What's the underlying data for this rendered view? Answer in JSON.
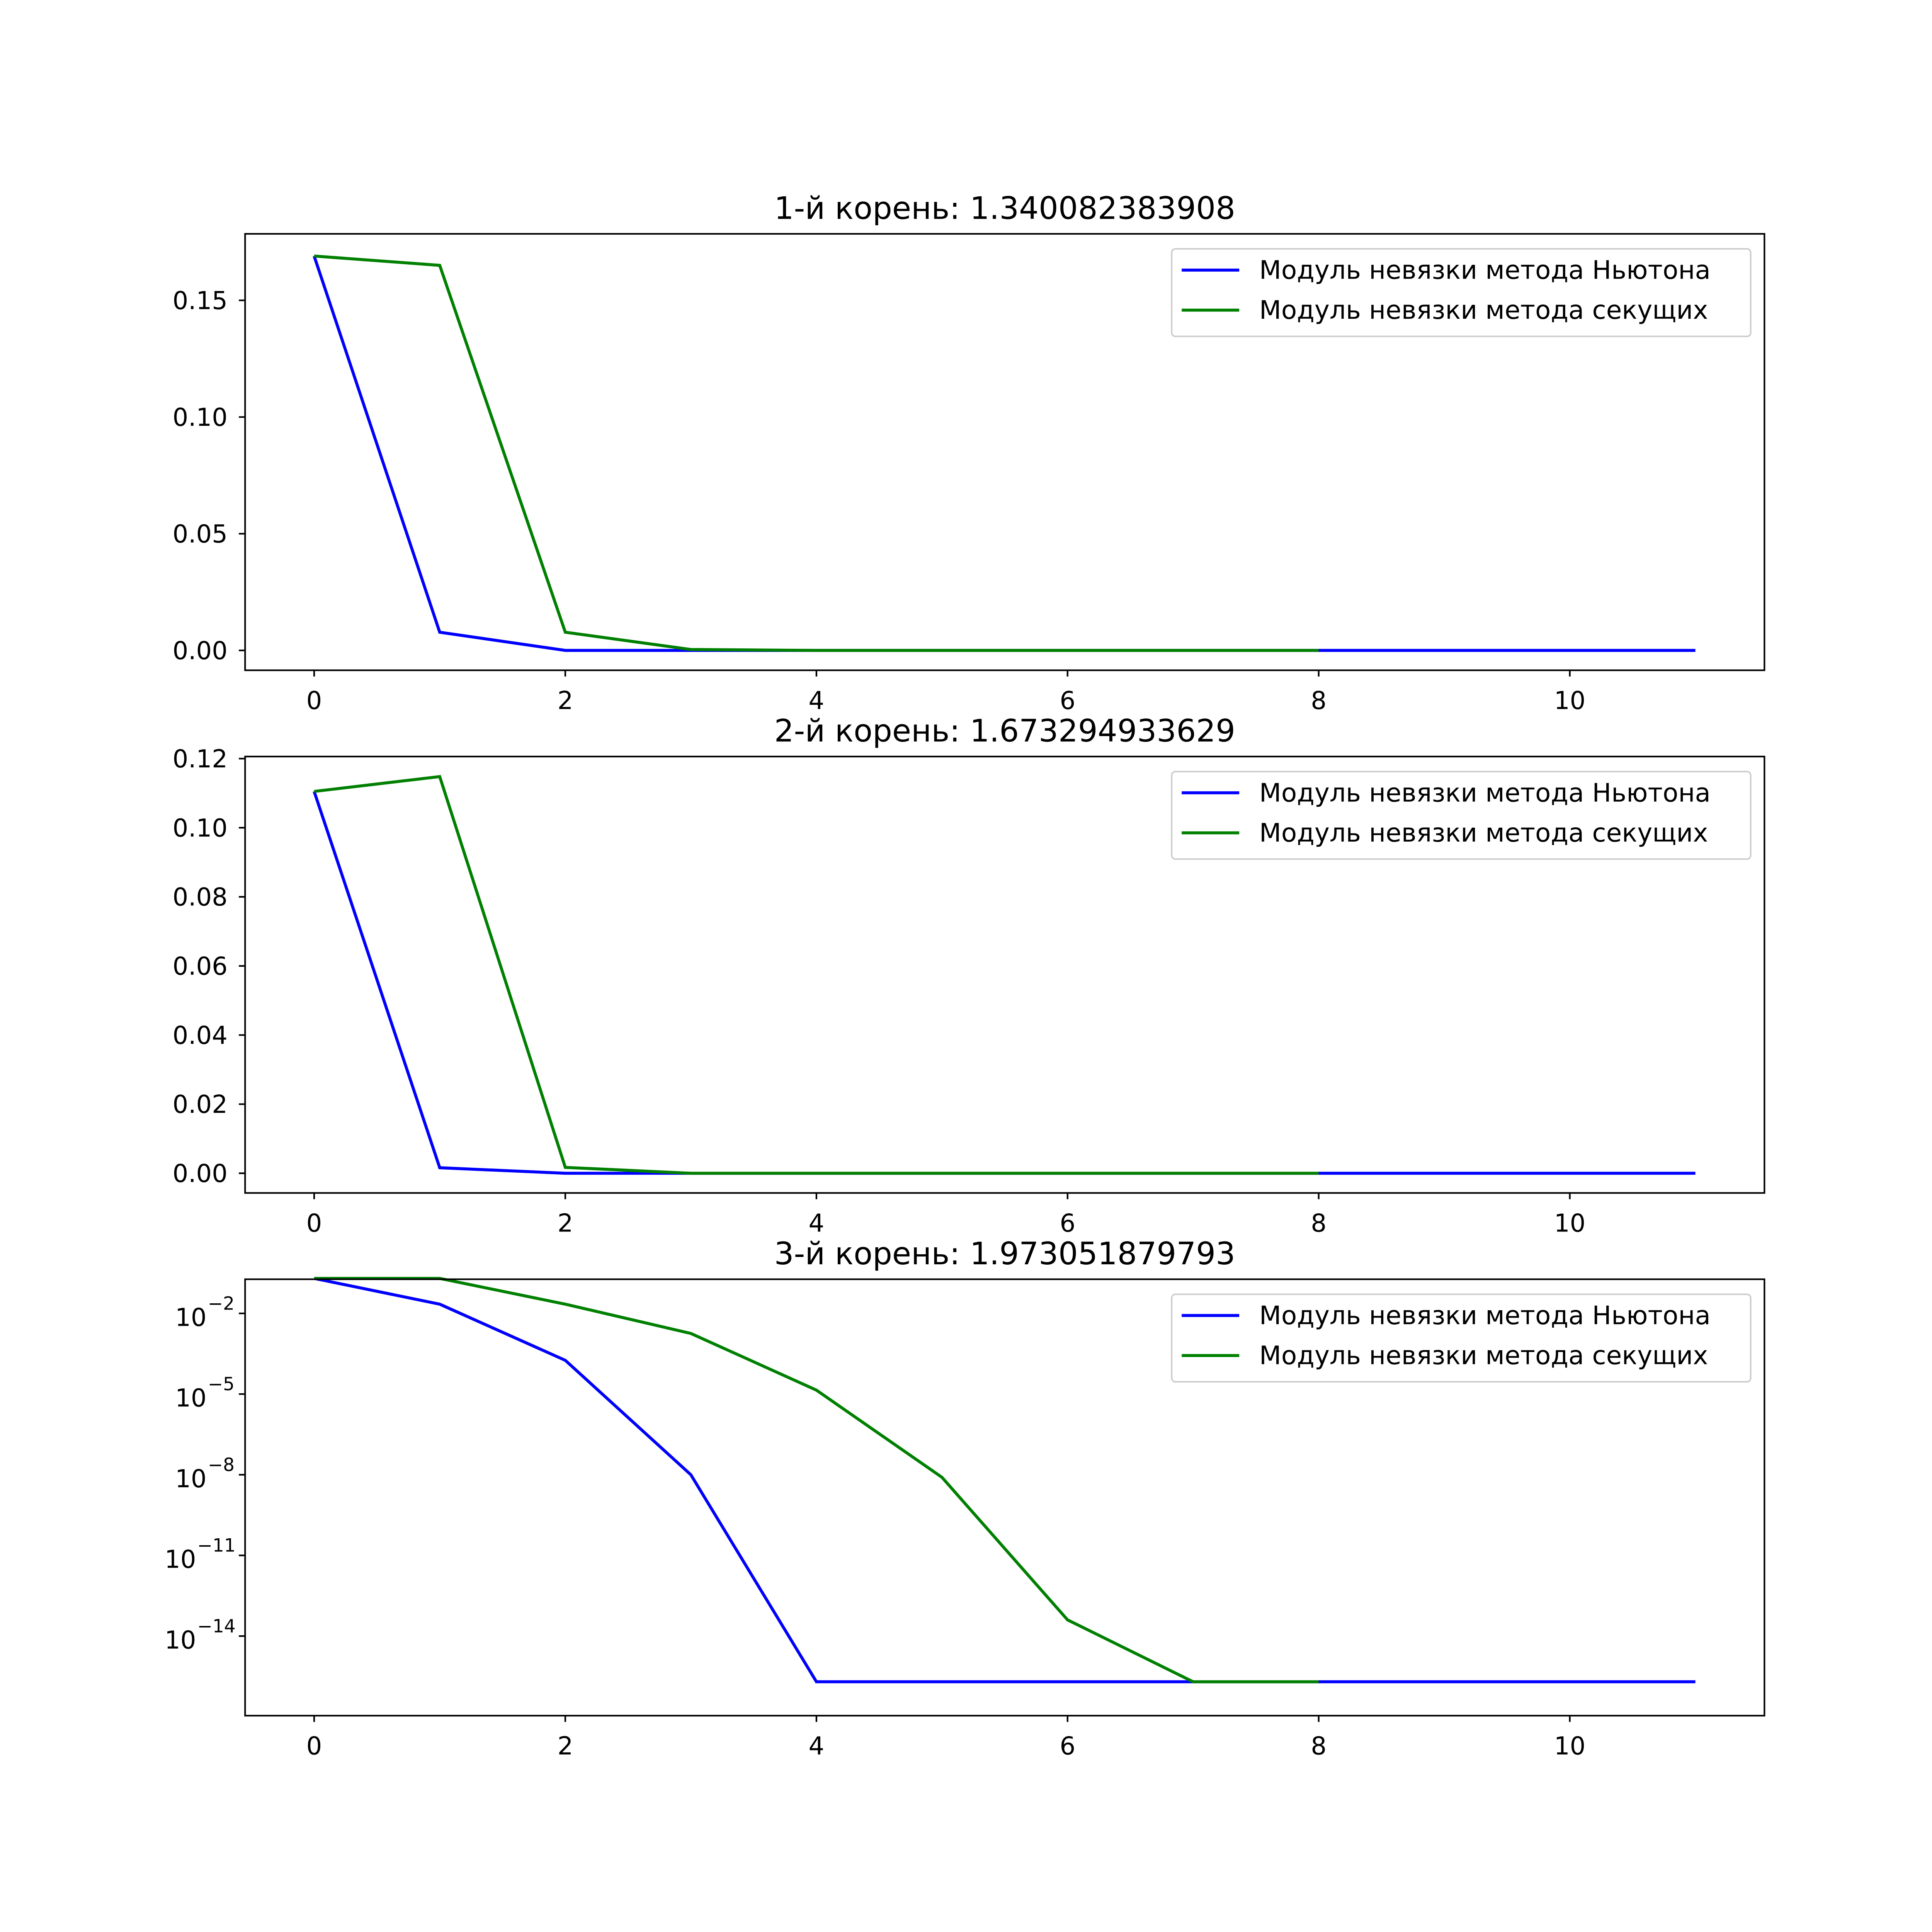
{
  "chart_data": [
    {
      "type": "line",
      "title": "1-й корень: 1.340082383908",
      "xlabel": "",
      "ylabel": "",
      "xlim": [
        -0.55,
        11.55
      ],
      "ylim": [
        -0.0085,
        0.1785
      ],
      "yscale": "linear",
      "xticks": [
        0,
        2,
        4,
        6,
        8,
        10
      ],
      "yticks": [
        0.0,
        0.05,
        0.1,
        0.15
      ],
      "ytick_labels": [
        "0.00",
        "0.05",
        "0.10",
        "0.15"
      ],
      "grid": false,
      "legend": "top-right",
      "series": [
        {
          "name": "Модуль невязки метода Ньютона",
          "color": "#0000ff",
          "x": [
            0,
            1,
            2,
            3,
            4,
            5,
            6,
            7,
            8,
            9,
            10,
            11
          ],
          "y": [
            0.169,
            0.0078,
            2e-05,
            0.0,
            0.0,
            0.0,
            0.0,
            0.0,
            0.0,
            0.0,
            0.0,
            0.0
          ]
        },
        {
          "name": "Модуль невязки метода секущих",
          "color": "#008000",
          "x": [
            0,
            1,
            2,
            3,
            4,
            5,
            6,
            7,
            8
          ],
          "y": [
            0.169,
            0.165,
            0.0078,
            0.0004,
            0.0,
            0.0,
            0.0,
            0.0,
            0.0
          ]
        }
      ]
    },
    {
      "type": "line",
      "title": "2-й корень: 1.673294933629",
      "xlabel": "",
      "ylabel": "",
      "xlim": [
        -0.55,
        11.55
      ],
      "ylim": [
        -0.0057,
        0.1206
      ],
      "yscale": "linear",
      "xticks": [
        0,
        2,
        4,
        6,
        8,
        10
      ],
      "yticks": [
        0.0,
        0.02,
        0.04,
        0.06,
        0.08,
        0.1,
        0.12
      ],
      "ytick_labels": [
        "0.00",
        "0.02",
        "0.04",
        "0.06",
        "0.08",
        "0.10",
        "0.12"
      ],
      "grid": false,
      "legend": "top-right",
      "series": [
        {
          "name": "Модуль невязки метода Ньютона",
          "color": "#0000ff",
          "x": [
            0,
            1,
            2,
            3,
            4,
            5,
            6,
            7,
            8,
            9,
            10,
            11
          ],
          "y": [
            0.1105,
            0.0016,
            0.0,
            0.0,
            0.0,
            0.0,
            0.0,
            0.0,
            0.0,
            0.0,
            0.0,
            0.0
          ]
        },
        {
          "name": "Модуль невязки метода секущих",
          "color": "#008000",
          "x": [
            0,
            1,
            2,
            3,
            4,
            5,
            6,
            7,
            8
          ],
          "y": [
            0.1105,
            0.1148,
            0.0017,
            0.0,
            0.0,
            0.0,
            0.0,
            0.0,
            0.0
          ]
        }
      ]
    },
    {
      "type": "line",
      "title": "3-й корень: 1.973051879793",
      "xlabel": "",
      "ylabel": "",
      "xlim": [
        -0.55,
        11.55
      ],
      "ylim_log10": [
        -16.96,
        -0.73
      ],
      "yscale": "log",
      "xticks": [
        0,
        2,
        4,
        6,
        8,
        10
      ],
      "yticks_exponents": [
        -2,
        -5,
        -8,
        -11,
        -14
      ],
      "ytick_base": "10",
      "ytick_exponent_labels": [
        "−2",
        "−5",
        "−8",
        "−11",
        "−14"
      ],
      "grid": false,
      "legend": "top-right",
      "series": [
        {
          "name": "Модуль невязки метода Ньютона",
          "color": "#0000ff",
          "x": [
            0,
            1,
            2,
            3,
            4,
            5,
            6,
            7,
            8,
            9,
            10,
            11
          ],
          "y": [
            0.2,
            0.022,
            0.00018,
            1e-08,
            2e-16,
            2e-16,
            2e-16,
            2e-16,
            2e-16,
            2e-16,
            2e-16,
            2e-16
          ]
        },
        {
          "name": "Модуль невязки метода секущих",
          "color": "#008000",
          "x": [
            0,
            1,
            2,
            3,
            4,
            5,
            6,
            7,
            8
          ],
          "y": [
            0.2,
            0.2,
            0.022,
            0.0018,
            1.4e-05,
            8e-09,
            4e-14,
            2e-16,
            2e-16
          ]
        }
      ]
    }
  ]
}
